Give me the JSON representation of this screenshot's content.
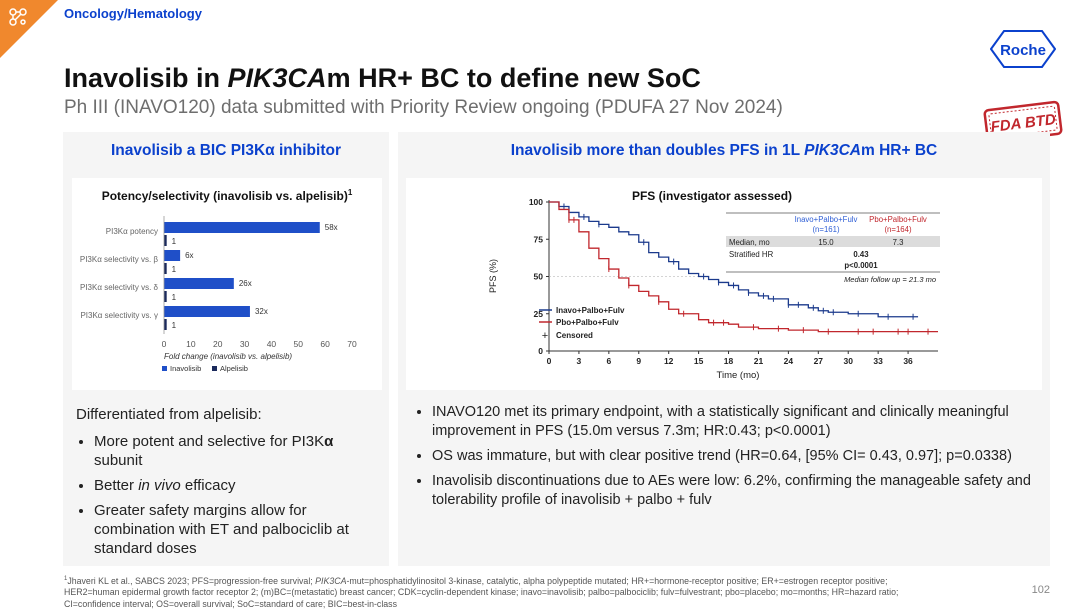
{
  "header": {
    "section": "Oncology/Hematology",
    "title_parts": [
      "Inavolisib in ",
      "PIK3CA",
      "m HR+ BC to define new SoC"
    ],
    "subtitle": "Ph III (INAVO120) data submitted with Priority Review ongoing (PDUFA 27 Nov 2024)",
    "logo_text": "Roche",
    "stamp_text": "FDA BTD"
  },
  "left_panel": {
    "heading": "Inavolisib a BIC PI3Kα inhibitor",
    "chart_title": "Potency/selectivity (inavolisib vs. alpelisib)",
    "chart_title_sup": "1",
    "intro": "Differentiated from alpelisib:",
    "bullets": [
      {
        "parts": [
          "More potent and selective for PI3K",
          "α",
          " subunit"
        ]
      },
      {
        "parts": [
          "Better ",
          "in vivo",
          " efficacy"
        ]
      },
      {
        "parts": [
          "Greater safety margins allow for combination with ET and palbociclib at standard doses"
        ]
      }
    ]
  },
  "right_panel": {
    "heading_parts": [
      "Inavolisib more than doubles PFS in 1L ",
      "PIK3CA",
      "m HR+ BC"
    ],
    "km_title": "PFS (investigator assessed)",
    "table": {
      "col1": "Inavo+Palbo+Fulv",
      "col1_n": "(n=161)",
      "col2": "Pbo+Palbo+Fulv",
      "col2_n": "(n=164)",
      "row1_label": "Median, mo",
      "row1_v1": "15.0",
      "row1_v2": "7.3",
      "row2_label": "Stratified HR",
      "row2_v": "0.43",
      "row2_p": "p<0.0001",
      "followup": "Median follow up = 21.3 mo"
    },
    "legend": {
      "inavo": "Inavo+Palbo+Fulv",
      "pbo": "Pbo+Palbo+Fulv",
      "censored": "Censored"
    },
    "bullets": [
      "INAVO120 met its primary endpoint, with a statistically significant and clinically meaningful improvement in PFS (15.0m versus 7.3m; HR:0.43; p<0.0001)",
      "OS was immature, but with clear positive trend (HR=0.64, [95% CI= 0.43, 0.97]; p=0.0338)",
      "Inavolisib discontinuations due to AEs were low: 6.2%, confirming the manageable safety and tolerability profile of inavolisib + palbo + fulv"
    ]
  },
  "footnote": {
    "sup": "1",
    "line1_parts": [
      "Jhaveri KL et al., SABCS 2023; PFS=progression-free survival; ",
      "PIK3CA",
      "-mut=phosphatidylinositol 3-kinase, catalytic, alpha polypeptide mutated; HR+=hormone-receptor positive; ER+=estrogen receptor positive;"
    ],
    "line2": "HER2=human epidermal growth factor receptor 2; (m)BC=(metastatic) breast cancer; CDK=cyclin-dependent kinase; inavo=inavolisib; palbo=palbociclib; fulv=fulvestrant; pbo=placebo; mo=months; HR=hazard ratio;",
    "line3": "CI=confidence interval; OS=overall survival; SoC=standard of care; BIC=best-in-class"
  },
  "page_number": "102",
  "colors": {
    "brand_blue": "#0b41cd",
    "inavo": "#1b3a8c",
    "pbo": "#c1272d",
    "orange": "#f0882d"
  },
  "chart_data": [
    {
      "type": "bar",
      "orientation": "horizontal",
      "title": "Potency/selectivity (inavolisib vs. alpelisib)",
      "categories": [
        "PI3Kα potency",
        "PI3Kα selectivity vs. β",
        "PI3Kα selectivity vs. δ",
        "PI3Kα selectivity vs. γ"
      ],
      "series": [
        {
          "name": "Inavolisib",
          "color": "#1f4fc8",
          "values": [
            58,
            6,
            26,
            32
          ],
          "labels": [
            "58x",
            "6x",
            "26x",
            "32x"
          ]
        },
        {
          "name": "Alpelisib",
          "color": "#1b2a5c",
          "values": [
            1,
            1,
            1,
            1
          ],
          "labels": [
            "1",
            "1",
            "1",
            "1"
          ]
        }
      ],
      "xlabel": "Fold change (inavolisib vs. alpelisib)",
      "xlim": [
        0,
        70
      ],
      "xticks": [
        "0",
        "10",
        "20",
        "30",
        "40",
        "50",
        "60",
        "70"
      ],
      "legend": "bottom-left"
    },
    {
      "type": "line",
      "subtype": "kaplan-meier",
      "title": "PFS (investigator assessed)",
      "xlabel": "Time (mo)",
      "ylabel": "PFS (%)",
      "xlim": [
        0,
        39
      ],
      "ylim": [
        0,
        100
      ],
      "xticks": [
        "0",
        "3",
        "6",
        "9",
        "12",
        "15",
        "18",
        "21",
        "24",
        "27",
        "30",
        "33",
        "36"
      ],
      "yticks": [
        "0",
        "25",
        "50",
        "75",
        "100"
      ],
      "legend": "bottom-left",
      "series": [
        {
          "name": "Inavo+Palbo+Fulv",
          "color": "#1b3a8c",
          "x": [
            0,
            1,
            2,
            3,
            4,
            5,
            6,
            7,
            8,
            9,
            10,
            11,
            12,
            13,
            14,
            15,
            16,
            17,
            18,
            19,
            20,
            21,
            22,
            24,
            26,
            27,
            28,
            30,
            33,
            36,
            37
          ],
          "y": [
            100,
            97,
            93,
            90,
            87,
            85,
            83,
            80,
            78,
            73,
            66,
            63,
            60,
            55,
            52,
            50,
            48,
            46,
            44,
            41,
            39,
            37,
            35,
            31,
            29,
            27,
            26,
            25,
            23,
            23,
            23
          ],
          "censored_x": [
            1.5,
            3.5,
            5,
            9.5,
            12.5,
            15.5,
            17,
            18.5,
            20,
            21.5,
            22.5,
            24,
            25,
            26.5,
            27.5,
            28.5,
            31,
            34,
            36.5
          ]
        },
        {
          "name": "Pbo+Palbo+Fulv",
          "color": "#c1272d",
          "x": [
            0,
            1,
            2,
            3,
            4,
            5,
            6,
            7,
            8,
            9,
            10,
            11,
            12,
            13,
            15,
            16,
            18,
            19,
            21,
            24,
            27,
            30,
            33,
            36,
            39
          ],
          "y": [
            100,
            95,
            88,
            80,
            69,
            62,
            55,
            49,
            44,
            40,
            37,
            33,
            28,
            25,
            21,
            19,
            18,
            16,
            15,
            14,
            13,
            13,
            13,
            13,
            13
          ],
          "censored_x": [
            2,
            2.5,
            6,
            8,
            11,
            13.5,
            16.5,
            17.5,
            20.5,
            23,
            25.5,
            28,
            31,
            32.5,
            35,
            36,
            38
          ]
        }
      ]
    }
  ]
}
